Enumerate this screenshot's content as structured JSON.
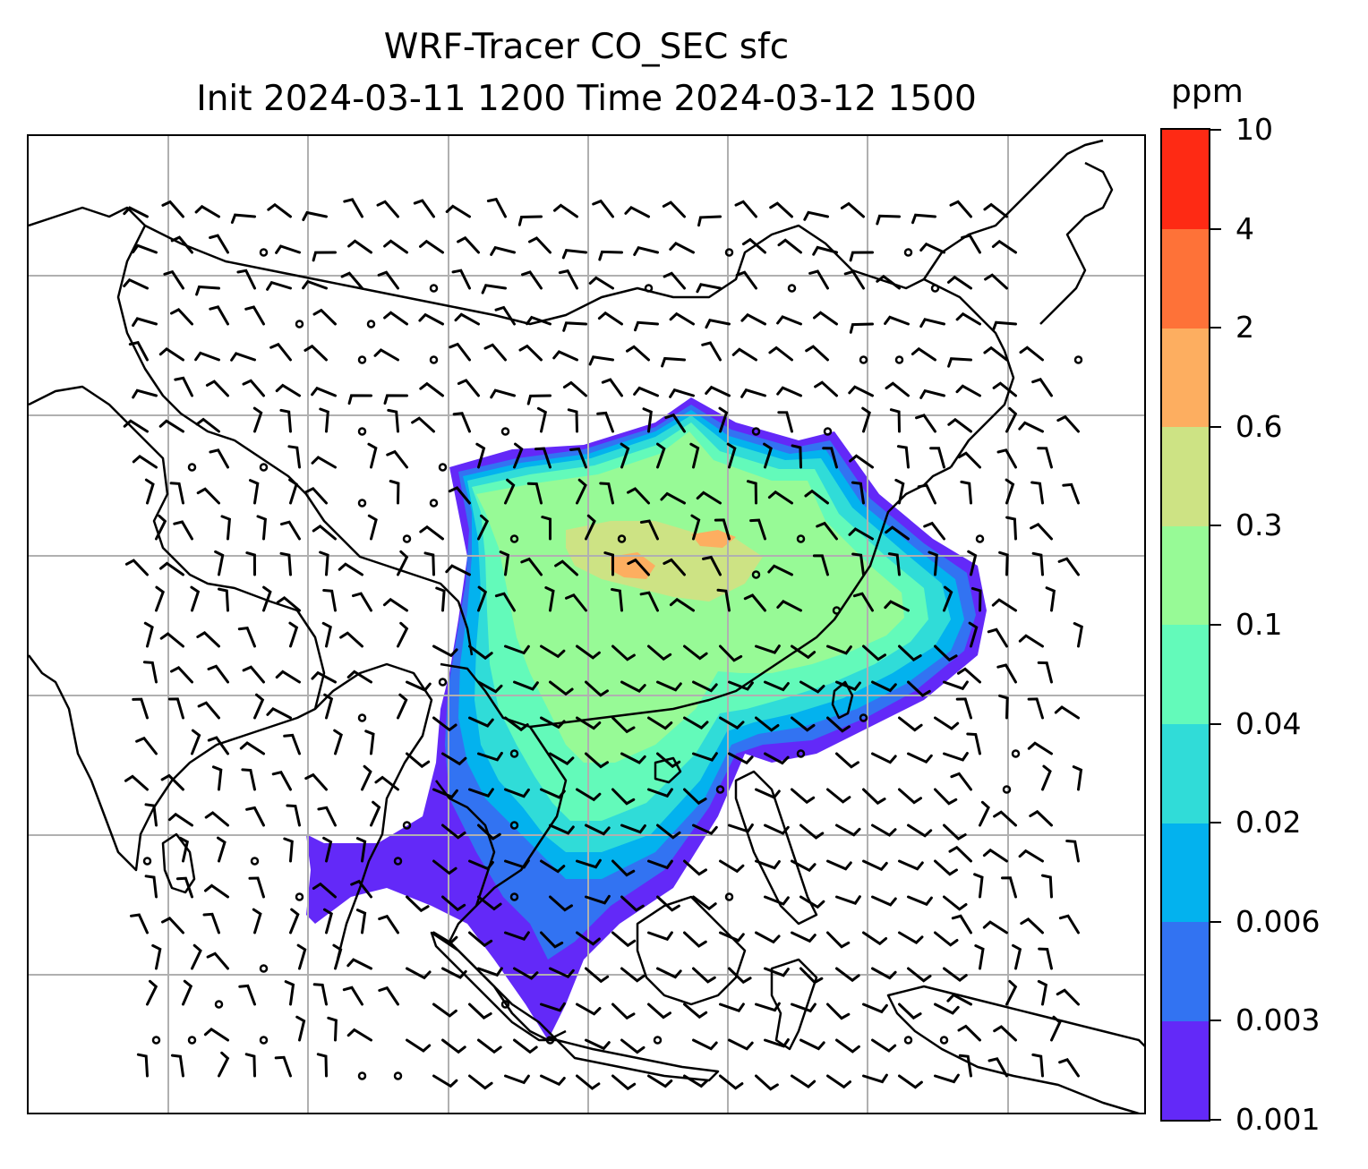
{
  "title": {
    "line1": "WRF-Tracer CO_SEC sfc",
    "line2": "Init 2024-03-11 1200 Time 2024-03-12 1500"
  },
  "colorbar": {
    "units": "ppm",
    "levels": [
      "0.001",
      "0.003",
      "0.006",
      "0.02",
      "0.04",
      "0.1",
      "0.3",
      "0.6",
      "2",
      "4",
      "10"
    ],
    "colors": [
      "#6329f8",
      "#3273f2",
      "#03b2ee",
      "#30dcd8",
      "#63faba",
      "#97fa96",
      "#cde384",
      "#fdae60",
      "#fe7238",
      "#fe2a14"
    ]
  },
  "map": {
    "gridlines": "on",
    "wind_barbs": "on",
    "calm_markers": "on"
  }
}
